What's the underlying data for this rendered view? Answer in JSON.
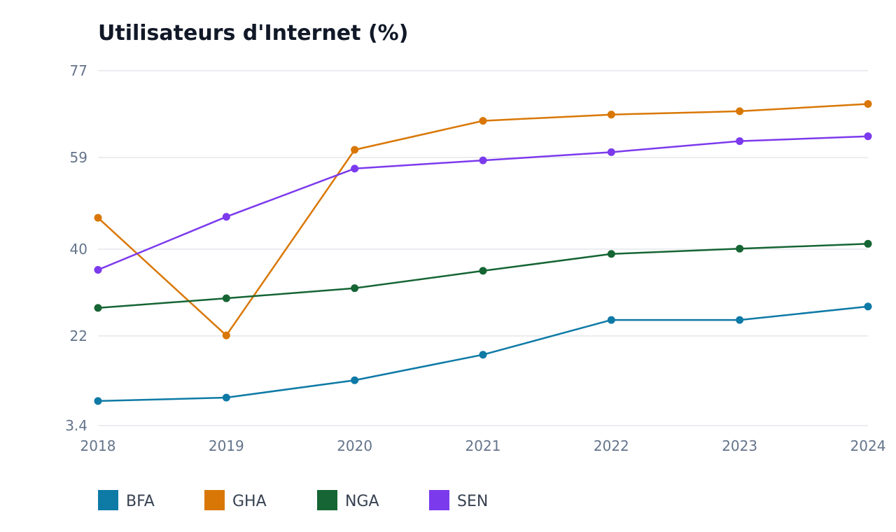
{
  "chart_data": {
    "type": "line",
    "title": "Utilisateurs d'Internet (%)",
    "xlabel": "",
    "ylabel": "",
    "x": [
      "2018",
      "2019",
      "2020",
      "2021",
      "2022",
      "2023",
      "2024"
    ],
    "yticks": [
      3.4,
      22,
      40,
      59,
      77
    ],
    "ytick_labels": [
      "3.4",
      "22",
      "40",
      "59",
      "77"
    ],
    "ylim": [
      3.4,
      77
    ],
    "grid": true,
    "legend_position": "bottom",
    "series": [
      {
        "name": "BFA",
        "color": "#0e7aa6",
        "values": [
          8.5,
          9.2,
          12.8,
          18.1,
          25.3,
          25.3,
          28.1
        ]
      },
      {
        "name": "GHA",
        "color": "#d97706",
        "values": [
          46.5,
          22.1,
          60.6,
          66.6,
          67.9,
          68.6,
          70.1
        ]
      },
      {
        "name": "NGA",
        "color": "#166534",
        "values": [
          27.8,
          29.8,
          31.9,
          35.5,
          39.0,
          40.1,
          41.1
        ]
      },
      {
        "name": "SEN",
        "color": "#7c3aed",
        "values": [
          35.7,
          46.7,
          56.7,
          58.4,
          60.1,
          62.4,
          63.4
        ]
      }
    ]
  }
}
